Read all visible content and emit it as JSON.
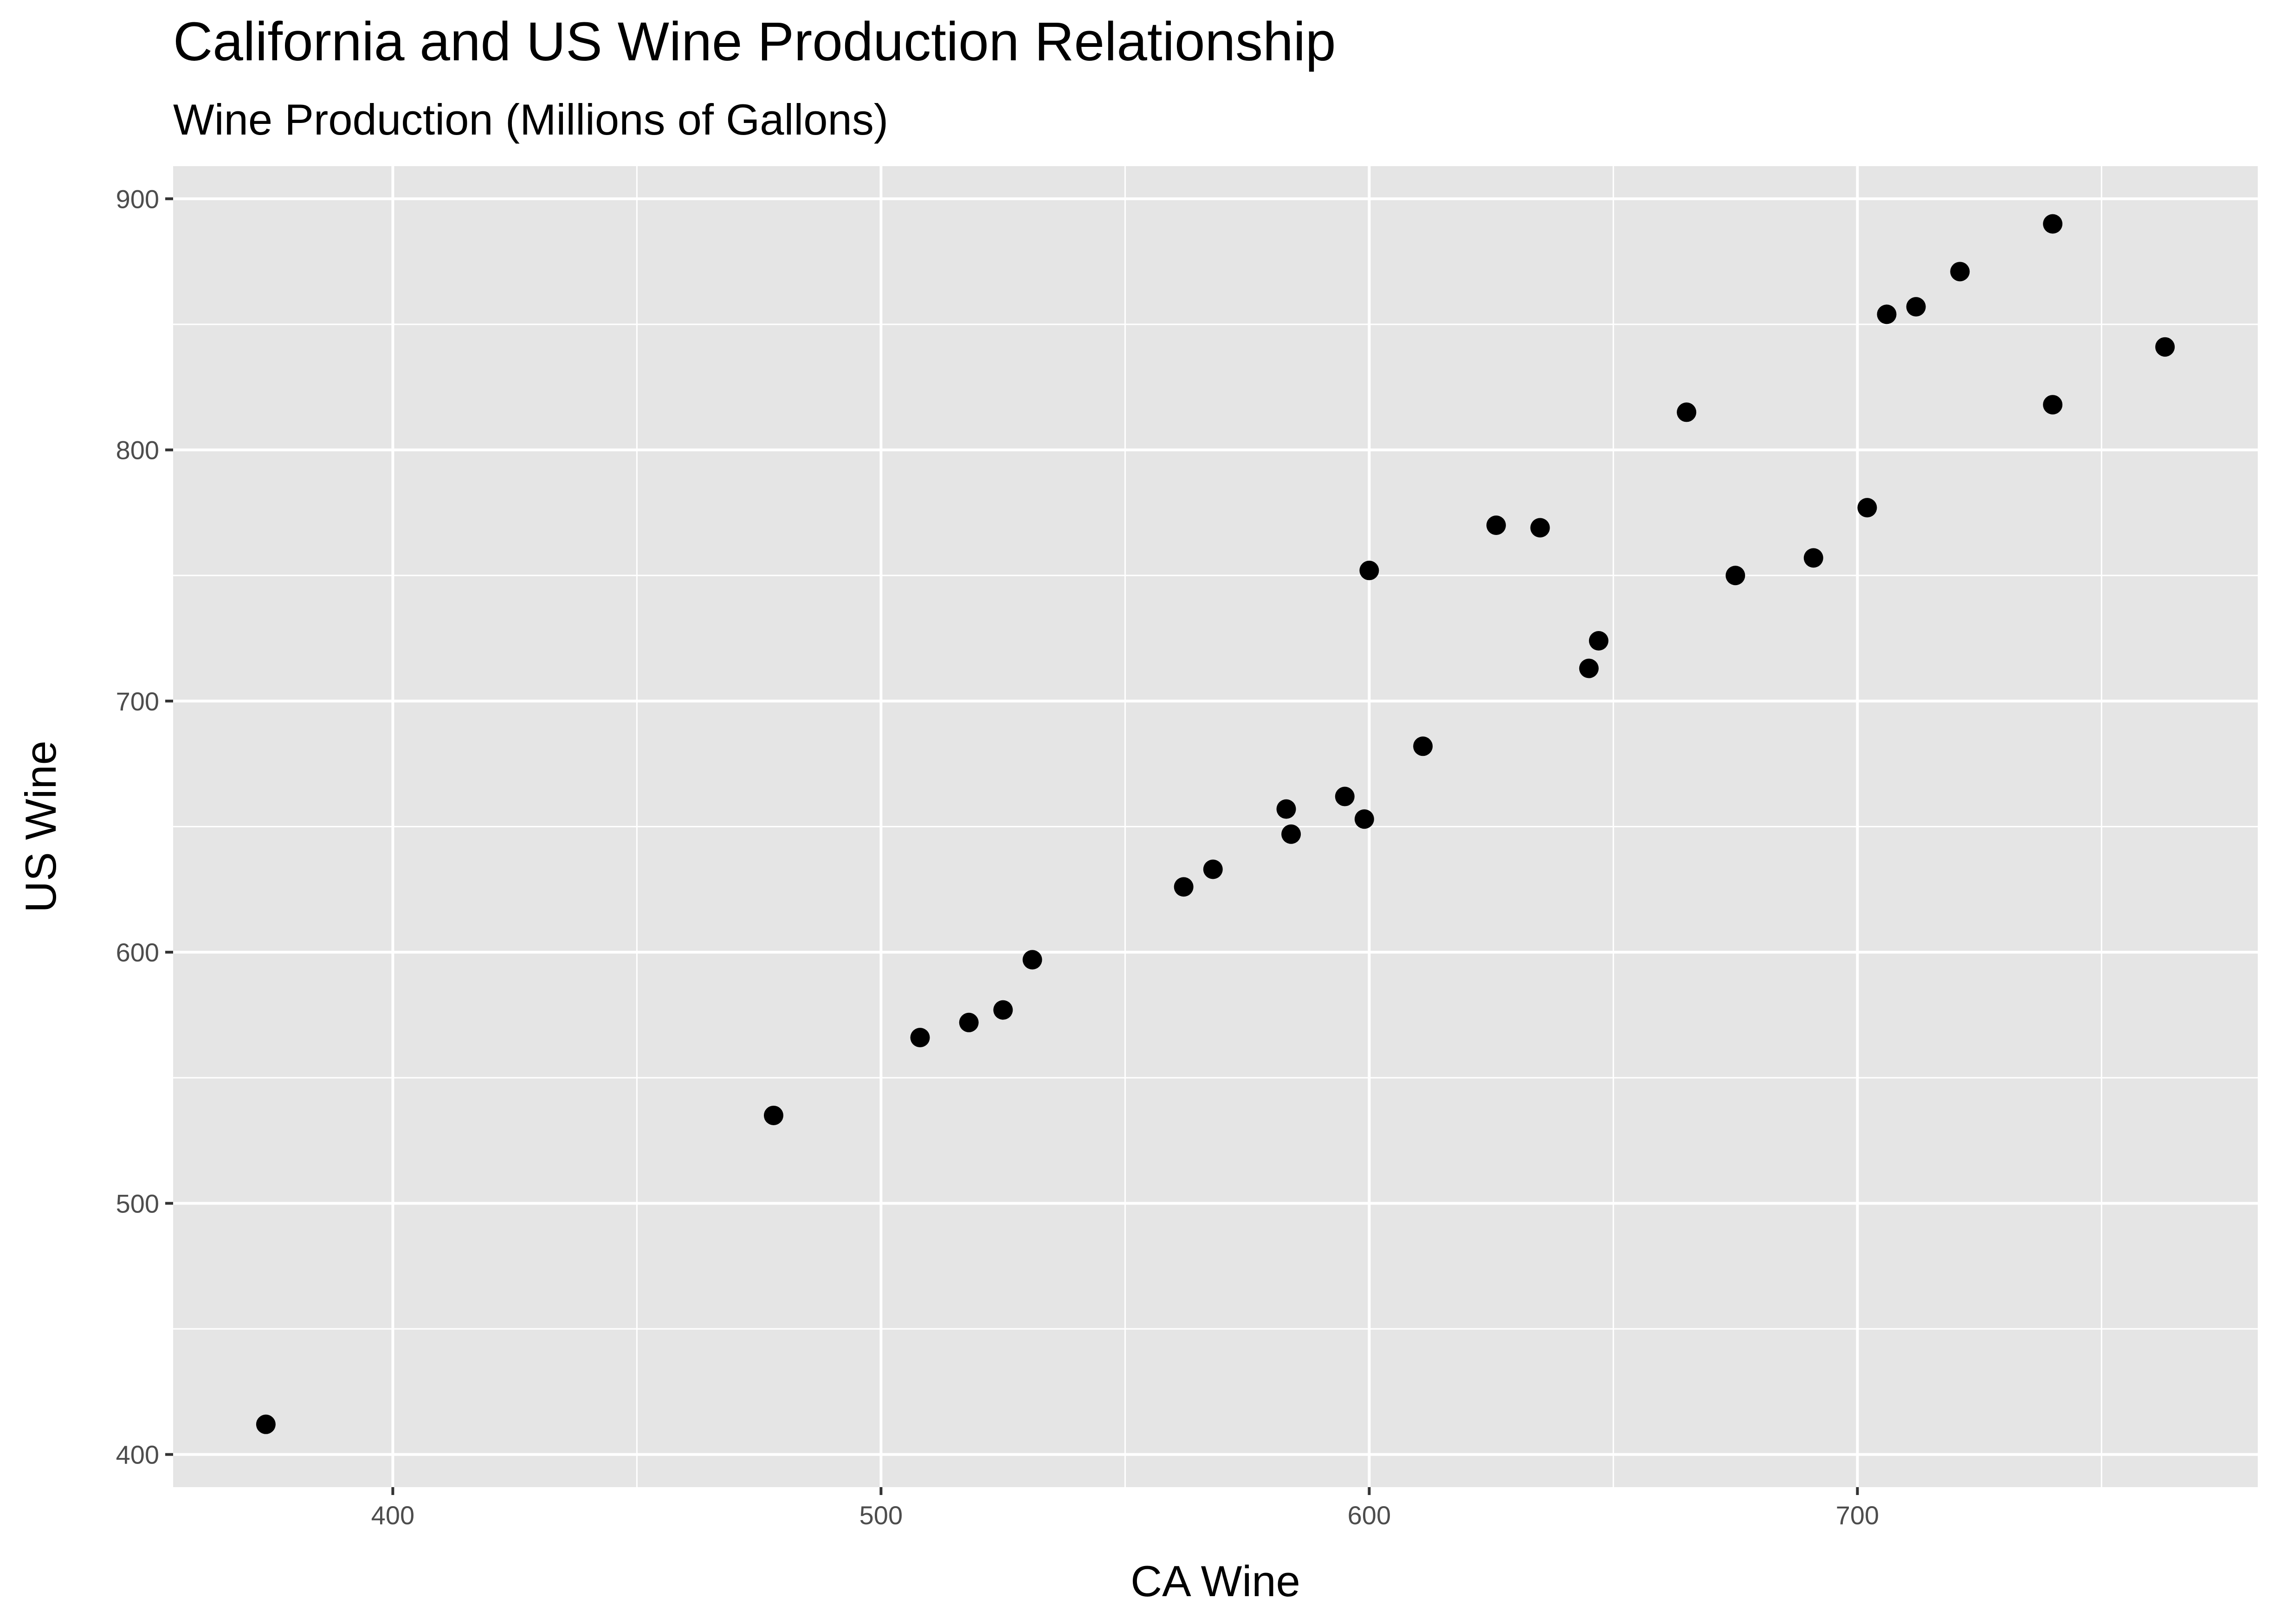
{
  "chart_data": {
    "type": "scatter",
    "title": "California and US Wine Production Relationship",
    "subtitle": "Wine Production (Millions of Gallons)",
    "xlabel": "CA Wine",
    "ylabel": "US Wine",
    "xlim": [
      355,
      782
    ],
    "ylim": [
      387,
      913
    ],
    "x_ticks": [
      400,
      500,
      600,
      700
    ],
    "y_ticks": [
      400,
      500,
      600,
      700,
      800,
      900
    ],
    "x_minor_ticks": [
      450,
      550,
      650,
      750
    ],
    "y_minor_ticks": [
      450,
      550,
      650,
      750,
      850
    ],
    "grid": true,
    "background_color": "#e5e5e5",
    "grid_color": "#ffffff",
    "point_color": "#000000",
    "x": [
      374,
      478,
      508,
      518,
      525,
      531,
      562,
      568,
      583,
      584,
      595,
      599,
      600,
      611,
      626,
      635,
      645,
      647,
      665,
      675,
      691,
      702,
      706,
      712,
      721,
      740,
      740,
      763
    ],
    "y": [
      412,
      535,
      566,
      572,
      577,
      597,
      626,
      633,
      657,
      647,
      662,
      653,
      752,
      682,
      770,
      769,
      713,
      724,
      815,
      750,
      757,
      777,
      854,
      857,
      871,
      890,
      818,
      841
    ]
  }
}
